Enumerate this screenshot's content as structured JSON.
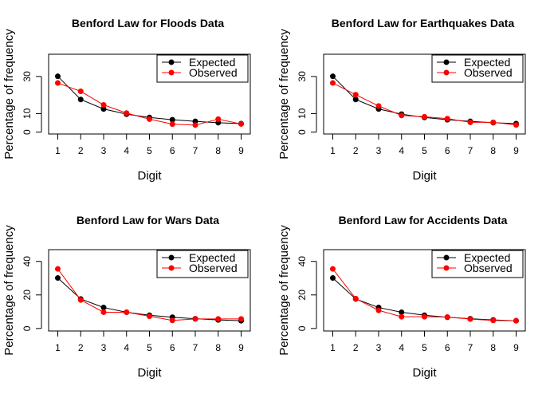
{
  "chart_data": [
    {
      "type": "line",
      "title": "Benford Law for Floods Data",
      "xlabel": "Digit",
      "ylabel": "Percentage of frequency",
      "x": [
        1,
        2,
        3,
        4,
        5,
        6,
        7,
        8,
        9
      ],
      "yticks": [
        0,
        10,
        30
      ],
      "ylim": [
        -1,
        42
      ],
      "series": [
        {
          "name": "Expected",
          "color": "#000000",
          "values": [
            30.1,
            17.6,
            12.5,
            9.7,
            7.9,
            6.7,
            5.8,
            5.1,
            4.6
          ]
        },
        {
          "name": "Observed",
          "color": "#ff0000",
          "values": [
            26.5,
            22.0,
            14.7,
            10.3,
            7.0,
            4.3,
            3.8,
            7.0,
            4.4
          ]
        }
      ],
      "legend": "top-right"
    },
    {
      "type": "line",
      "title": "Benford Law for Earthquakes Data",
      "xlabel": "Digit",
      "ylabel": "Percentage of frequency",
      "x": [
        1,
        2,
        3,
        4,
        5,
        6,
        7,
        8,
        9
      ],
      "yticks": [
        0,
        10,
        30
      ],
      "ylim": [
        -1,
        42
      ],
      "series": [
        {
          "name": "Expected",
          "color": "#000000",
          "values": [
            30.1,
            17.6,
            12.5,
            9.7,
            7.9,
            6.7,
            5.8,
            5.1,
            4.6
          ]
        },
        {
          "name": "Observed",
          "color": "#ff0000",
          "values": [
            26.5,
            20.2,
            14.1,
            9.0,
            8.3,
            7.3,
            5.3,
            5.3,
            3.9
          ]
        }
      ],
      "legend": "top-right"
    },
    {
      "type": "line",
      "title": "Benford Law for Wars Data",
      "xlabel": "Digit",
      "ylabel": "Percentage of frequency",
      "x": [
        1,
        2,
        3,
        4,
        5,
        6,
        7,
        8,
        9
      ],
      "yticks": [
        0,
        20,
        40
      ],
      "ylim": [
        -1.5,
        47
      ],
      "series": [
        {
          "name": "Expected",
          "color": "#000000",
          "values": [
            30.1,
            17.6,
            12.5,
            9.7,
            7.9,
            6.7,
            5.8,
            5.1,
            4.6
          ]
        },
        {
          "name": "Observed",
          "color": "#ff0000",
          "values": [
            35.5,
            17.0,
            9.7,
            9.7,
            7.3,
            4.8,
            5.7,
            5.7,
            5.7
          ]
        }
      ],
      "legend": "top-right"
    },
    {
      "type": "line",
      "title": "Benford Law for Accidents Data",
      "xlabel": "Digit",
      "ylabel": "Percentage of frequency",
      "x": [
        1,
        2,
        3,
        4,
        5,
        6,
        7,
        8,
        9
      ],
      "yticks": [
        0,
        20,
        40
      ],
      "ylim": [
        -1.5,
        47
      ],
      "series": [
        {
          "name": "Expected",
          "color": "#000000",
          "values": [
            30.1,
            17.6,
            12.5,
            9.7,
            7.9,
            6.7,
            5.8,
            5.1,
            4.6
          ]
        },
        {
          "name": "Observed",
          "color": "#ff0000",
          "values": [
            35.5,
            17.8,
            10.8,
            7.0,
            7.0,
            6.8,
            5.6,
            4.8,
            4.6
          ]
        }
      ],
      "legend": "top-right"
    }
  ]
}
